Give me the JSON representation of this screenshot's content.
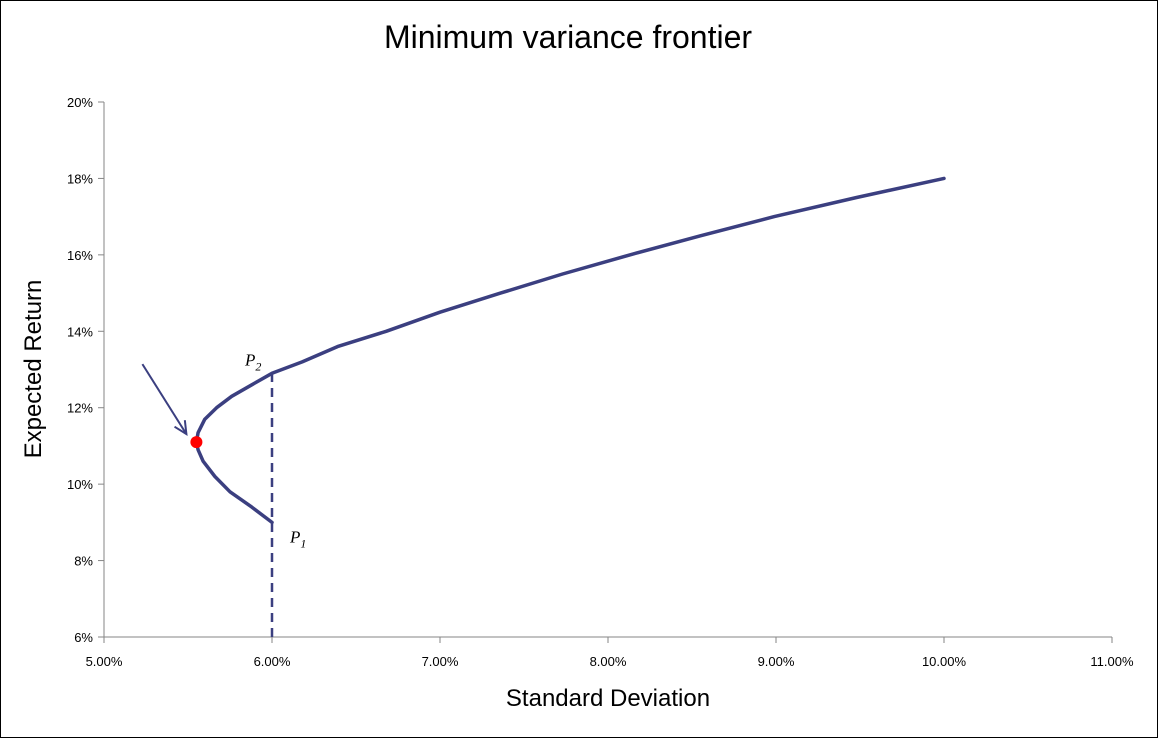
{
  "chart_data": {
    "type": "line",
    "title": "Minimum variance frontier",
    "xlabel": "Standard Deviation",
    "ylabel": "Expected Return",
    "xlim": [
      5.0,
      11.0
    ],
    "ylim": [
      6,
      20
    ],
    "x_ticks": [
      "5.00%",
      "6.00%",
      "7.00%",
      "8.00%",
      "9.00%",
      "10.00%",
      "11.00%"
    ],
    "y_ticks": [
      "6%",
      "8%",
      "10%",
      "12%",
      "14%",
      "16%",
      "18%",
      "20%"
    ],
    "grid": false,
    "series": [
      {
        "x": [
          6.0,
          5.88,
          5.75,
          5.66,
          5.59,
          5.56,
          5.55,
          5.56,
          5.6,
          5.67,
          5.76,
          5.88,
          6.0,
          6.18,
          6.39,
          6.68,
          7.0,
          7.36,
          7.73,
          8.13,
          8.55,
          8.99,
          9.48,
          10.0
        ],
        "y": [
          9.0,
          9.4,
          9.8,
          10.2,
          10.6,
          10.9,
          11.1,
          11.35,
          11.7,
          12.0,
          12.3,
          12.6,
          12.9,
          13.2,
          13.6,
          14.0,
          14.5,
          15.0,
          15.5,
          16.0,
          16.5,
          17.0,
          17.5,
          18.0
        ]
      }
    ],
    "min_variance_point": {
      "x": 5.55,
      "y": 11.1
    },
    "reference_line": {
      "x": 6.0,
      "y_from": 6.0,
      "y_to": 12.9
    },
    "annotations": [
      {
        "label": "P",
        "subscript": "2",
        "x": 6.0,
        "y": 12.9
      },
      {
        "label": "P",
        "subscript": "1",
        "x": 6.0,
        "y": 9.0
      }
    ],
    "colors": {
      "curve": "#3b3f80",
      "min_point": "#ff0000",
      "axis": "#868686"
    }
  }
}
